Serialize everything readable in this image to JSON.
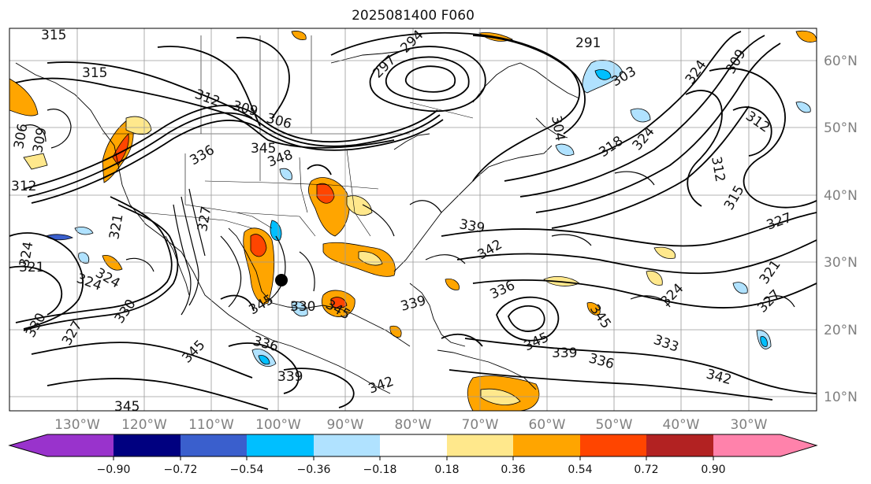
{
  "title": "2025081400 F060",
  "lat_labels": [
    "60°N",
    "50°N",
    "40°N",
    "30°N",
    "20°N",
    "10°N"
  ],
  "lon_labels": [
    "130°W",
    "120°W",
    "110°W",
    "100°W",
    "90°W",
    "80°W",
    "70°W",
    "60°W",
    "50°W",
    "40°W",
    "30°W"
  ],
  "contour_labels": [
    "315",
    "315",
    "306",
    "309",
    "312",
    "312",
    "309",
    "306",
    "345",
    "336",
    "348",
    "297",
    "294",
    "291",
    "303",
    "304",
    "318",
    "324",
    "324",
    "309",
    "312",
    "312",
    "315",
    "327",
    "330",
    "321",
    "324",
    "327",
    "324",
    "330",
    "327",
    "321",
    "345",
    "345",
    "339",
    "339",
    "342",
    "336",
    "339",
    "345",
    "336",
    "333",
    "342",
    "324",
    "345",
    "327",
    "321",
    "324",
    "336",
    "342",
    "345",
    "339",
    "330",
    "345"
  ],
  "colorbar": {
    "ticks": [
      "−0.90",
      "−0.72",
      "−0.54",
      "−0.36",
      "−0.18",
      "0.18",
      "0.36",
      "0.54",
      "0.72",
      "0.90"
    ],
    "colors": [
      "#9933cc",
      "#000080",
      "#3a5fcd",
      "#00bfff",
      "#b0e2ff",
      "#ffffff",
      "#ffe88c",
      "#ffa500",
      "#ff4500",
      "#b22222",
      "#ff82ab"
    ]
  },
  "colors": {
    "contour": "#000000",
    "grid": "#9a9a9a",
    "axis_label": "#808080"
  }
}
